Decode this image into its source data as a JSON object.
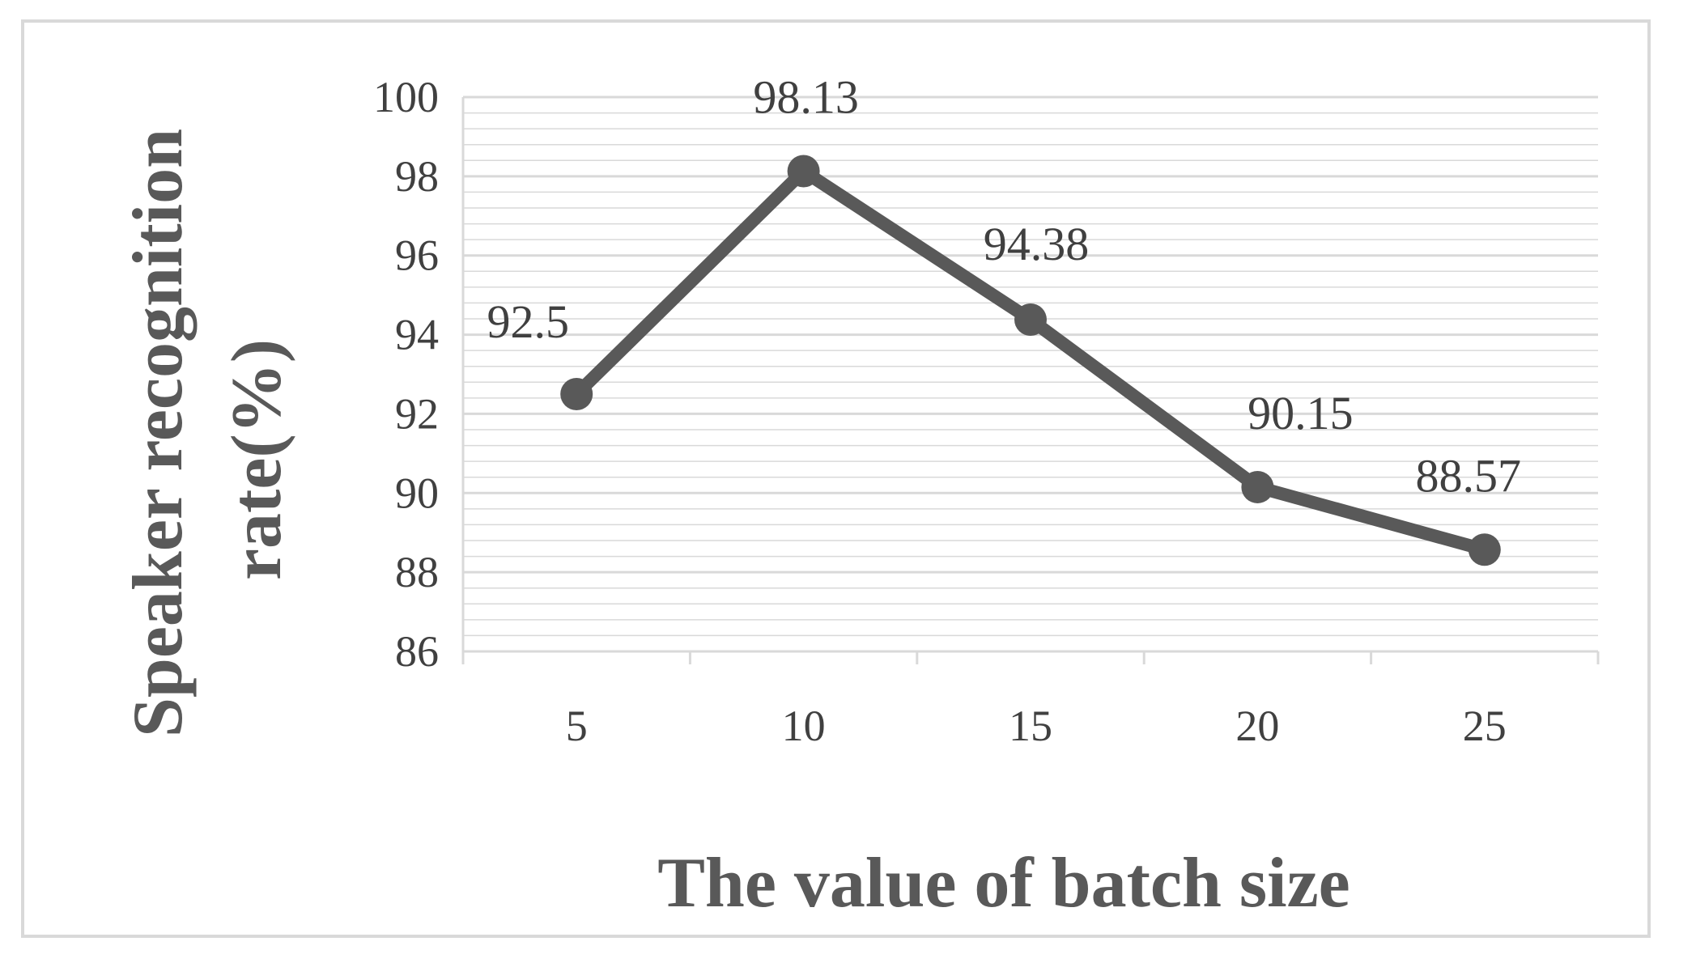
{
  "chart_data": {
    "type": "line",
    "title": "",
    "xlabel": "The value of batch size",
    "ylabel_line1": "Speaker recognition",
    "ylabel_line2": "rate(%)",
    "categories": [
      "5",
      "10",
      "15",
      "20",
      "25"
    ],
    "series": [
      {
        "values": [
          92.5,
          98.13,
          94.38,
          90.15,
          88.57
        ],
        "data_labels": [
          "92.5",
          "98.13",
          "94.38",
          "90.15",
          "88.57"
        ]
      }
    ],
    "ylim": [
      86,
      100
    ],
    "yticks": [
      86,
      88,
      90,
      92,
      94,
      96,
      98,
      100
    ],
    "ytick_labels": [
      "86",
      "88",
      "90",
      "92",
      "94",
      "96",
      "98",
      "100"
    ],
    "y_minor_step": 0.4,
    "grid": true,
    "legend": "none",
    "colors": {
      "line": "#595959",
      "grid": "#d9d9d9",
      "axis": "#d9d9d9",
      "text": "#404040",
      "frame": "#d9d9d9"
    }
  }
}
